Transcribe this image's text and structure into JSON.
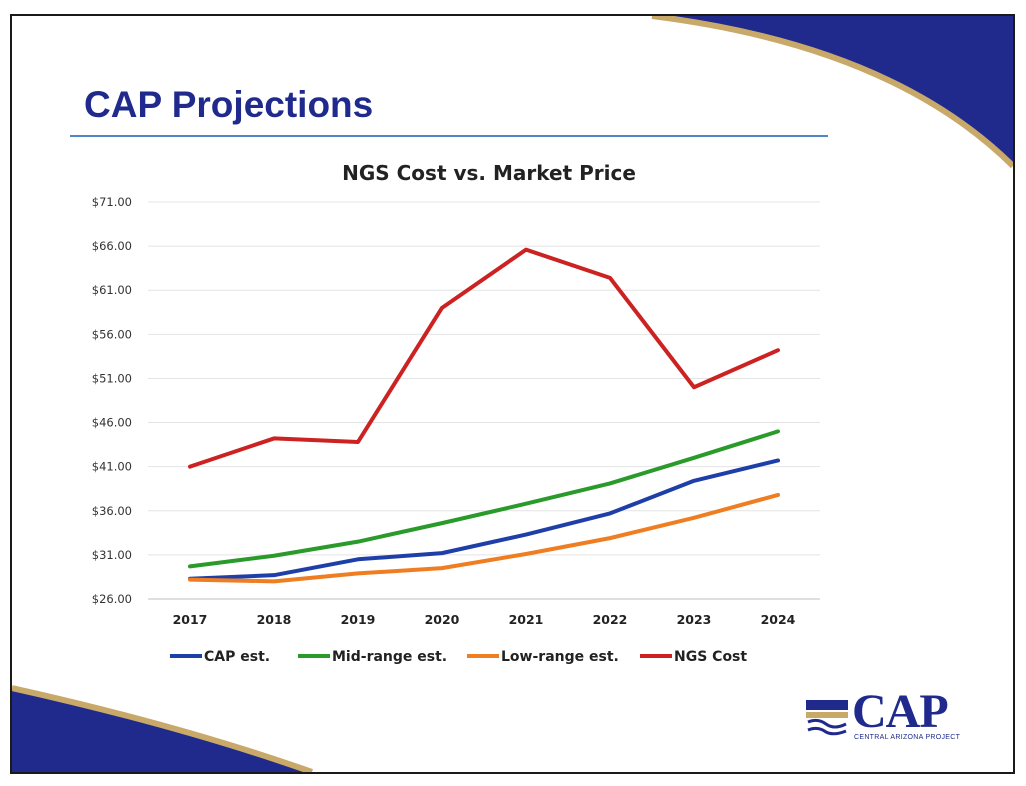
{
  "slide": {
    "title": "CAP Projections",
    "colors": {
      "title": "#1f2a8c",
      "rule": "#4f86c6",
      "deco_blue": "#1f2a8c",
      "deco_gold": "#c8a96a"
    }
  },
  "logo": {
    "text": "CAP",
    "subtitle": "CENTRAL ARIZONA PROJECT"
  },
  "chart_data": {
    "type": "line",
    "title": "NGS Cost vs. Market Price",
    "xlabel": "",
    "ylabel": "",
    "x": [
      "2017",
      "2018",
      "2019",
      "2020",
      "2021",
      "2022",
      "2023",
      "2024"
    ],
    "ylim": [
      26,
      71
    ],
    "yticks": [
      "$71.00",
      "$66.00",
      "$61.00",
      "$56.00",
      "$51.00",
      "$46.00",
      "$41.00",
      "$36.00",
      "$31.00",
      "$26.00"
    ],
    "ytick_values": [
      71,
      66,
      61,
      56,
      51,
      46,
      41,
      36,
      31,
      26
    ],
    "grid": true,
    "legend_position": "bottom",
    "series": [
      {
        "name": "CAP est.",
        "color": "#1f3fa8",
        "values": [
          28.3,
          28.7,
          30.5,
          31.2,
          33.3,
          35.7,
          39.4,
          41.7
        ]
      },
      {
        "name": "Mid-range est.",
        "color": "#2a9a2a",
        "values": [
          29.7,
          30.9,
          32.5,
          34.6,
          36.8,
          39.1,
          42.0,
          45.0
        ]
      },
      {
        "name": "Low-range est.",
        "color": "#ef7d22",
        "values": [
          28.2,
          28.0,
          28.9,
          29.5,
          31.1,
          32.9,
          35.2,
          37.8
        ]
      },
      {
        "name": "NGS Cost",
        "color": "#cc2222",
        "values": [
          41.0,
          44.2,
          43.8,
          59.0,
          65.6,
          62.4,
          50.0,
          54.2
        ]
      }
    ]
  }
}
